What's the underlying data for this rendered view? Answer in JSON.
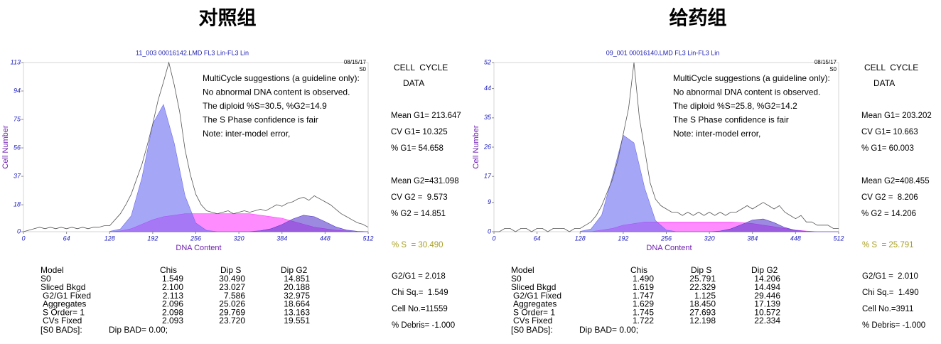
{
  "chart_data": [
    {
      "type": "line",
      "title": "11_003 00016142.LMD FL3 Lin-FL3 Lin",
      "date": "08/15/17",
      "sample": "S0",
      "xlabel": "DNA Content",
      "ylabel": "Cell Number",
      "xlim": [
        0,
        512
      ],
      "xticks": [
        0,
        64,
        128,
        192,
        256,
        320,
        384,
        448,
        512
      ],
      "ylim": [
        0,
        113
      ],
      "yticks": [
        0,
        18,
        37,
        56,
        75,
        94,
        113
      ],
      "annotations": [
        {
          "text": "MultiCycle suggestions (a guideline only):",
          "color": "#000000"
        },
        {
          "text": "No abnormal DNA content is observed.",
          "color": "#000000"
        },
        {
          "text": "The diploid %S=30.5, %G2=14.9",
          "color": "#000000"
        },
        {
          "text": "The S Phase confidence is fair",
          "color": "#a8a020"
        },
        {
          "text": "Note: inter-model error,",
          "color": "#000000"
        }
      ],
      "series": [
        {
          "color": "#ff40ff",
          "fill": true,
          "x": [
            128,
            144,
            160,
            176,
            192,
            208,
            224,
            240,
            256,
            272,
            288,
            304,
            320,
            336,
            352,
            368,
            384,
            400,
            416,
            432,
            448,
            464,
            480,
            496,
            512
          ],
          "values": [
            0,
            0.5,
            2,
            5,
            8,
            10,
            11,
            12,
            12,
            12,
            12,
            12,
            12,
            12,
            11,
            10,
            9,
            7,
            5,
            3,
            2,
            1,
            0.5,
            0,
            0
          ]
        },
        {
          "color": "#5a3ccc",
          "fill": true,
          "x": [
            128,
            144,
            160,
            176,
            192,
            208,
            224,
            240,
            256,
            272,
            288,
            304,
            320,
            336,
            352,
            368,
            384,
            400,
            416,
            432,
            448,
            464,
            480,
            496,
            512
          ],
          "values": [
            0,
            0,
            0,
            0,
            0,
            0,
            0,
            0,
            0,
            0,
            0,
            0,
            0,
            0.1,
            0.6,
            2,
            4.8,
            8.5,
            11,
            10,
            6.7,
            3.2,
            1.1,
            0.3,
            0
          ]
        },
        {
          "color": "#6a6af0",
          "fill": true,
          "x": [
            128,
            144,
            160,
            176,
            192,
            208,
            224,
            240,
            256,
            272,
            288,
            304,
            320,
            336,
            352,
            368,
            384,
            400,
            416,
            432,
            448,
            464,
            480,
            496,
            512
          ],
          "values": [
            0.2,
            1.8,
            10.6,
            36,
            72,
            85,
            59,
            24,
            5.8,
            0.8,
            0.1,
            0,
            0,
            0,
            0,
            0,
            0,
            0,
            0,
            0,
            0,
            0,
            0,
            0,
            0
          ]
        },
        {
          "color": "#555555",
          "fill": false,
          "x": [
            0,
            8,
            16,
            24,
            32,
            40,
            48,
            56,
            64,
            72,
            80,
            88,
            96,
            104,
            112,
            120,
            128,
            136,
            144,
            152,
            160,
            168,
            176,
            184,
            192,
            200,
            208,
            216,
            224,
            232,
            240,
            248,
            256,
            264,
            272,
            280,
            288,
            296,
            304,
            312,
            320,
            328,
            336,
            344,
            352,
            360,
            368,
            376,
            384,
            392,
            400,
            408,
            416,
            424,
            432,
            440,
            448,
            456,
            464,
            472,
            480,
            488,
            496,
            504,
            512
          ],
          "values": [
            0,
            1,
            2,
            3,
            2,
            3,
            2,
            3,
            2,
            3,
            2,
            3,
            2,
            3,
            3,
            4,
            4,
            8,
            12,
            18,
            25,
            35,
            45,
            58,
            72,
            88,
            100,
            113,
            98,
            80,
            55,
            38,
            25,
            18,
            14,
            13,
            12,
            13,
            14,
            12,
            13,
            14,
            13,
            14,
            15,
            14,
            16,
            18,
            17,
            19,
            20,
            22,
            23,
            21,
            24,
            22,
            20,
            18,
            15,
            12,
            10,
            8,
            6,
            5,
            3
          ]
        }
      ]
    },
    {
      "type": "line",
      "title": "09_001 00016140.LMD FL3 Lin-FL3 Lin",
      "date": "08/15/17",
      "sample": "S0",
      "xlabel": "DNA Content",
      "ylabel": "Cell Number",
      "xlim": [
        0,
        512
      ],
      "xticks": [
        0,
        64,
        128,
        192,
        256,
        320,
        384,
        448,
        512
      ],
      "ylim": [
        0,
        52
      ],
      "yticks": [
        0,
        9,
        17,
        26,
        35,
        44,
        52
      ],
      "annotations": [
        {
          "text": "MultiCycle suggestions (a guideline only):",
          "color": "#000000"
        },
        {
          "text": "No abnormal DNA content is observed.",
          "color": "#000000"
        },
        {
          "text": "The diploid %S=25.8, %G2=14.2",
          "color": "#000000"
        },
        {
          "text": "The S Phase confidence is fair",
          "color": "#a8a020"
        },
        {
          "text": "Note: inter-model error,",
          "color": "#000000"
        }
      ],
      "series": [
        {
          "color": "#ff40ff",
          "fill": true,
          "x": [
            128,
            144,
            160,
            176,
            192,
            208,
            224,
            240,
            256,
            272,
            288,
            304,
            320,
            336,
            352,
            368,
            384,
            400,
            416,
            432,
            448,
            464,
            480,
            496,
            512
          ],
          "values": [
            0,
            0,
            0.5,
            1,
            2,
            2.5,
            3,
            3,
            3,
            3,
            3,
            3,
            3,
            3,
            3,
            2.8,
            2.5,
            2,
            1.5,
            1,
            0.5,
            0.2,
            0,
            0,
            0
          ]
        },
        {
          "color": "#5a3ccc",
          "fill": true,
          "x": [
            128,
            144,
            160,
            176,
            192,
            208,
            224,
            240,
            256,
            272,
            288,
            304,
            320,
            336,
            352,
            368,
            384,
            400,
            416,
            432,
            448,
            464,
            480,
            496,
            512
          ],
          "values": [
            0,
            0,
            0,
            0,
            0,
            0,
            0,
            0,
            0,
            0,
            0,
            0,
            0,
            0.2,
            0.9,
            2.2,
            3.6,
            3.9,
            2.8,
            1.3,
            0.4,
            0.1,
            0,
            0,
            0
          ]
        },
        {
          "color": "#6a6af0",
          "fill": true,
          "x": [
            128,
            144,
            160,
            176,
            192,
            208,
            224,
            240,
            256,
            272,
            288,
            304,
            320,
            336,
            352,
            368,
            384,
            400,
            416,
            432,
            448,
            464,
            480,
            496,
            512
          ],
          "values": [
            0.1,
            0.8,
            5.1,
            17,
            29.7,
            27.3,
            13.3,
            3.4,
            0.5,
            0,
            0,
            0,
            0,
            0,
            0,
            0,
            0,
            0,
            0,
            0,
            0,
            0,
            0,
            0,
            0
          ]
        },
        {
          "color": "#555555",
          "fill": false,
          "x": [
            0,
            8,
            16,
            24,
            32,
            40,
            48,
            56,
            64,
            72,
            80,
            88,
            96,
            104,
            112,
            120,
            128,
            136,
            144,
            152,
            160,
            168,
            176,
            184,
            192,
            200,
            208,
            216,
            224,
            232,
            240,
            248,
            256,
            264,
            272,
            280,
            288,
            296,
            304,
            312,
            320,
            328,
            336,
            344,
            352,
            360,
            368,
            376,
            384,
            392,
            400,
            408,
            416,
            424,
            432,
            440,
            448,
            456,
            464,
            472,
            480,
            488,
            496,
            504,
            512
          ],
          "values": [
            0,
            0,
            1,
            1,
            0,
            1,
            1,
            0,
            1,
            1,
            0,
            1,
            1,
            1,
            0,
            1,
            1,
            2,
            3,
            5,
            8,
            12,
            16,
            22,
            30,
            38,
            52,
            35,
            25,
            15,
            10,
            8,
            7,
            6,
            6,
            5,
            6,
            5,
            6,
            5,
            6,
            5,
            6,
            5,
            6,
            6,
            7,
            8,
            7,
            8,
            9,
            8,
            7,
            8,
            6,
            5,
            4,
            5,
            3,
            3,
            2,
            2,
            2,
            1,
            1
          ]
        }
      ]
    }
  ],
  "panels": [
    {
      "heading": "对照组",
      "cell_cycle": [
        "CELL  CYCLE",
        "DATA"
      ],
      "stats": [
        "Mean G1= 213.647",
        "CV G1= 10.325",
        "% G1= 54.658",
        "Mean G2=431.098",
        "CV G2 =  9.573",
        "% G2 = 14.851"
      ],
      "s_phase": "% S  = 30.490",
      "summary": [
        "G2/G1 = 2.018",
        "Chi Sq.=  1.549",
        "Cell No.=11559",
        "% Debris= -1.000"
      ],
      "table": {
        "header": [
          "Model",
          "Chis",
          "Dip S",
          "Dip G2"
        ],
        "rows": [
          [
            "S0",
            "1.549",
            "30.490",
            "14.851"
          ],
          [
            "Sliced Bkgd",
            "2.100",
            "23.027",
            "20.188"
          ],
          [
            "G2/G1 Fixed",
            "2.113",
            "7.586",
            "32.975"
          ],
          [
            "Aggregates",
            "2.096",
            "25.026",
            "18.664"
          ],
          [
            "S Order= 1",
            "2.098",
            "29.769",
            "13.163"
          ],
          [
            "CVs Fixed",
            "2.093",
            "23.720",
            "19.551"
          ]
        ]
      },
      "bads": [
        "[S0 BADs]:",
        "Dip BAD= 0.00;"
      ]
    },
    {
      "heading": "给药组",
      "cell_cycle": [
        "CELL  CYCLE",
        "DATA"
      ],
      "stats": [
        "Mean G1= 203.202",
        "CV G1= 10.663",
        "% G1= 60.003",
        "Mean G2=408.455",
        "CV G2 =  8.206",
        "% G2 = 14.206"
      ],
      "s_phase": "% S  = 25.791",
      "summary": [
        "G2/G1 =  2.010",
        "Chi Sq.=  1.490",
        "Cell No.=3911",
        "% Debris= -1.000"
      ],
      "table": {
        "header": [
          "Model",
          "Chis",
          "Dip S",
          "Dip G2"
        ],
        "rows": [
          [
            "S0",
            "1.490",
            "25.791",
            "14.206"
          ],
          [
            "Sliced Bkgd",
            "1.619",
            "22.329",
            "14.494"
          ],
          [
            "G2/G1 Fixed",
            "1.747",
            "1.125",
            "29.446"
          ],
          [
            "Aggregates",
            "1.629",
            "18.450",
            "17.139"
          ],
          [
            "S Order= 1",
            "1.745",
            "27.693",
            "10.572"
          ],
          [
            "CVs Fixed",
            "1.722",
            "12.198",
            "22.334"
          ]
        ]
      },
      "bads": [
        "[S0 BADs]:",
        "Dip BAD= 0.00;"
      ]
    }
  ]
}
